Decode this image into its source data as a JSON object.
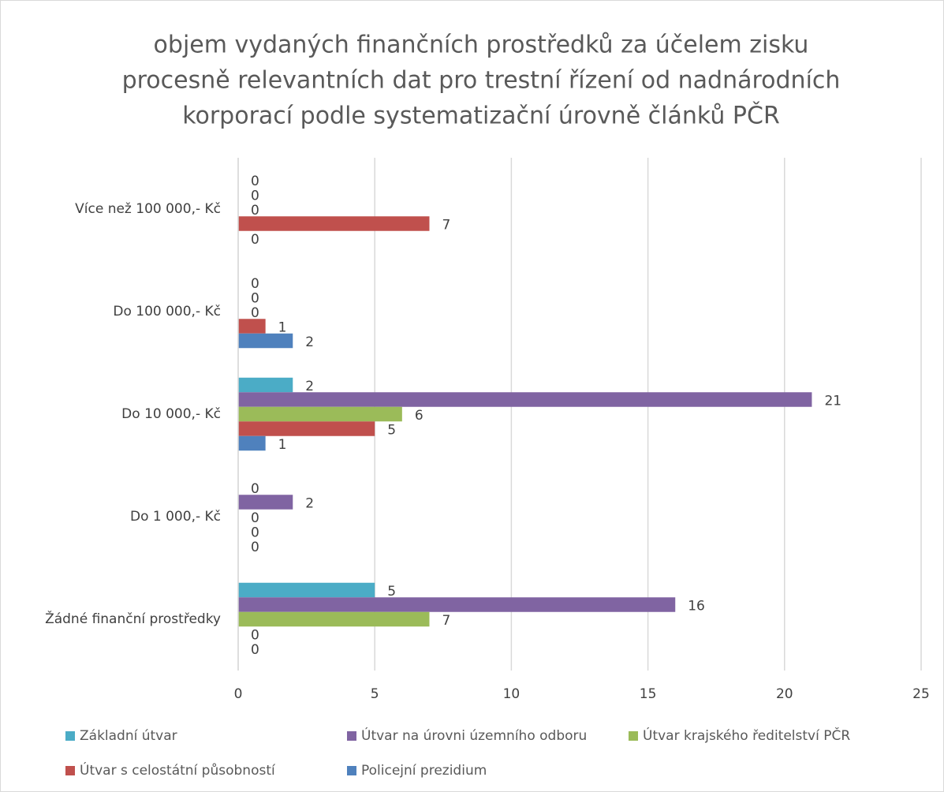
{
  "chart_data": {
    "type": "hbar",
    "title": [
      "objem vydaných finančních prostředků za účelem zisku",
      "procesně relevantních dat pro trestní řízení od nadnárodních",
      "korporací podle systematizační úrovně článků PČR"
    ],
    "categories": [
      "Více než 100 000,- Kč",
      "Do 100 000,- Kč",
      "Do 10 000,- Kč",
      "Do 1 000,- Kč",
      "Žádné finanční prostředky"
    ],
    "series": [
      {
        "name": "Základní útvar",
        "color": "#4bacc6",
        "values": [
          0,
          0,
          2,
          0,
          5
        ]
      },
      {
        "name": "Útvar na úrovni územního odboru",
        "color": "#8064a2",
        "values": [
          0,
          0,
          21,
          2,
          16
        ]
      },
      {
        "name": "Útvar krajského ředitelství PČR",
        "color": "#9bbb59",
        "values": [
          0,
          0,
          6,
          0,
          7
        ]
      },
      {
        "name": "Útvar s celostátní působností",
        "color": "#c0504d",
        "values": [
          7,
          1,
          5,
          0,
          0
        ]
      },
      {
        "name": "Policejní prezidium",
        "color": "#4f81bd",
        "values": [
          0,
          2,
          1,
          0,
          0
        ]
      }
    ],
    "xlim": [
      0,
      25
    ],
    "xticks": [
      0,
      5,
      10,
      15,
      20,
      25
    ],
    "grid": true,
    "legend": "bottom"
  }
}
